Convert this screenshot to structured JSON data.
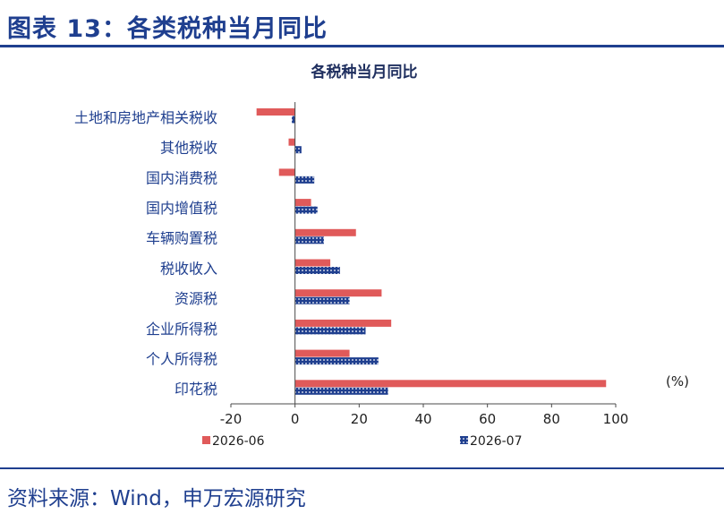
{
  "header": {
    "title": "图表 13：各类税种当月同比"
  },
  "footer": {
    "source": "资料来源：Wind，申万宏源研究"
  },
  "colors": {
    "series_1": "#e05a5a",
    "series_2": "#1f3f8f",
    "axis": "#4a4a4a",
    "title_blue": "#1f3f8f"
  },
  "chart_data": {
    "type": "bar",
    "orientation": "horizontal",
    "title": "各税种当月同比",
    "unit": "(%)",
    "categories": [
      "土地和房地产相关税收",
      "其他税收",
      "国内消费税",
      "国内增值税",
      "车辆购置税",
      "税收收入",
      "资源税",
      "企业所得税",
      "个人所得税",
      "印花税"
    ],
    "series": [
      {
        "name": "2026-06",
        "values": [
          -12,
          -2,
          -5,
          5,
          19,
          11,
          27,
          30,
          17,
          97
        ]
      },
      {
        "name": "2026-07",
        "values": [
          -1,
          2,
          6,
          7,
          9,
          14,
          17,
          22,
          26,
          29
        ]
      }
    ],
    "xlim": [
      -20,
      100
    ],
    "xticks": [
      -20,
      0,
      20,
      40,
      60,
      80,
      100
    ],
    "grid": false,
    "legend": "bottom"
  }
}
